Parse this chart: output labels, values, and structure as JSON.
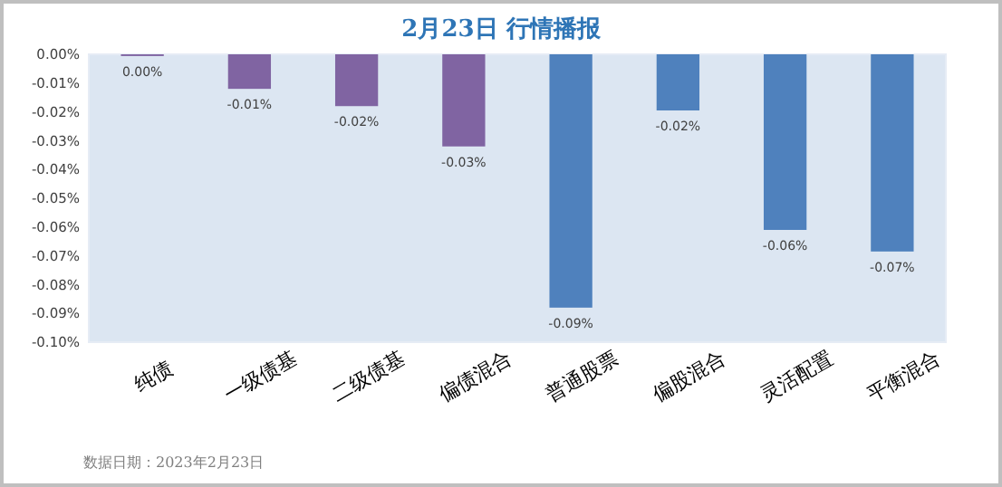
{
  "chart_data": {
    "type": "bar",
    "title": "2月23日 行情播报",
    "categories": [
      "纯债",
      "一级债基",
      "二级债基",
      "偏债混合",
      "普通股票",
      "偏股混合",
      "灵活配置",
      "平衡混合"
    ],
    "values": [
      -0.0006,
      -0.012,
      -0.018,
      -0.032,
      -0.088,
      -0.0195,
      -0.061,
      -0.0685
    ],
    "colors": [
      "#8064a2",
      "#8064a2",
      "#8064a2",
      "#8064a2",
      "#4f81bd",
      "#4f81bd",
      "#4f81bd",
      "#4f81bd"
    ],
    "value_labels": [
      "0.00%",
      "-0.01%",
      "-0.02%",
      "-0.03%",
      "-0.09%",
      "-0.02%",
      "-0.06%",
      "-0.07%"
    ],
    "ylim": [
      -0.1,
      0
    ],
    "yticks": [
      {
        "value": 0,
        "label": "0.00%"
      },
      {
        "value": -0.01,
        "label": "-0.01%"
      },
      {
        "value": -0.02,
        "label": "-0.02%"
      },
      {
        "value": -0.03,
        "label": "-0.03%"
      },
      {
        "value": -0.04,
        "label": "-0.04%"
      },
      {
        "value": -0.05,
        "label": "-0.05%"
      },
      {
        "value": -0.06,
        "label": "-0.06%"
      },
      {
        "value": -0.07,
        "label": "-0.07%"
      },
      {
        "value": -0.08,
        "label": "-0.08%"
      },
      {
        "value": -0.09,
        "label": "-0.09%"
      },
      {
        "value": -0.1,
        "label": "-0.10%"
      }
    ],
    "grid": false,
    "annotations": [
      "数据日期：2023年2月23日"
    ]
  }
}
